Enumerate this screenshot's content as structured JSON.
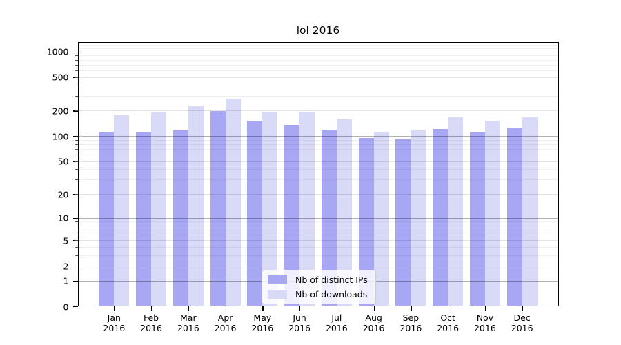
{
  "title": "lol 2016",
  "chart_data": {
    "type": "bar",
    "title": "lol 2016",
    "categories": [
      "Jan 2016",
      "Feb 2016",
      "Mar 2016",
      "Apr 2016",
      "May 2016",
      "Jun 2016",
      "Jul 2016",
      "Aug 2016",
      "Sep 2016",
      "Oct 2016",
      "Nov 2016",
      "Dec 2016"
    ],
    "series": [
      {
        "name": "Nb of distinct IPs",
        "color": "#a7a7f3",
        "values": [
          113,
          110,
          118,
          197,
          152,
          137,
          120,
          95,
          91,
          122,
          111,
          126
        ]
      },
      {
        "name": "Nb of downloads",
        "color": "#d9d9f8",
        "values": [
          176,
          192,
          224,
          280,
          195,
          196,
          159,
          112,
          116,
          167,
          152,
          168
        ]
      }
    ],
    "xlabel": "",
    "ylabel": "",
    "yscale": "log1p",
    "ytick_values": [
      0,
      1,
      2,
      5,
      10,
      20,
      50,
      100,
      200,
      500,
      1000
    ],
    "ylim": [
      0,
      1290
    ],
    "grid": "both",
    "legend_position": "lower-center",
    "colors": {
      "major_grid": "rgba(0,0,0,0.30)",
      "labeled_grid": "rgba(0,0,0,0.11)",
      "minor_grid": "rgba(0,0,0,0.055)",
      "spine": "#000000",
      "background": "#ffffff"
    }
  }
}
